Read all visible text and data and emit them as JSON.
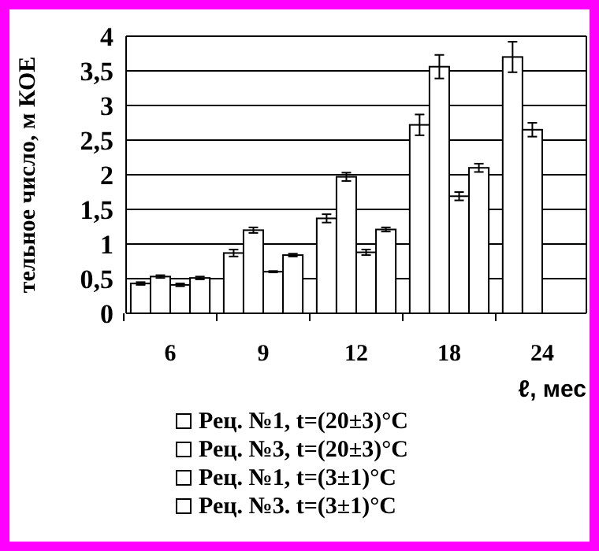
{
  "chart_data": {
    "type": "bar",
    "categories": [
      "6",
      "9",
      "12",
      "18",
      "24"
    ],
    "xlabel": "ℓ, мес",
    "ylabel": "тельное число, м КОЕ",
    "ylim": [
      0,
      4
    ],
    "yticks": [
      0,
      {
        "value": 0.5,
        "label": "0,5"
      },
      1,
      {
        "value": 1.5,
        "label": "1,5"
      },
      2,
      {
        "value": 2.5,
        "label": "2,5"
      },
      3,
      {
        "value": 3.5,
        "label": "3,5"
      },
      4
    ],
    "grid": "y",
    "legend": "bottom",
    "series": [
      {
        "name": "Рец. №1, t=(20±3)°C",
        "color": "#ffffff",
        "values": [
          0.43,
          0.87,
          1.37,
          2.72,
          3.7
        ],
        "errors": [
          0.02,
          0.05,
          0.06,
          0.15,
          0.22
        ]
      },
      {
        "name": "Рец. №3, t=(20±3)°C",
        "color": "#ffffff",
        "values": [
          0.53,
          1.2,
          1.97,
          3.56,
          2.65
        ],
        "errors": [
          0.02,
          0.04,
          0.06,
          0.17,
          0.1
        ]
      },
      {
        "name": "Рец. №1, t=(3±1)°C",
        "color": "#ffffff",
        "values": [
          0.41,
          0.6,
          0.88,
          1.69,
          null
        ],
        "errors": [
          0.02,
          0.01,
          0.04,
          0.06,
          null
        ]
      },
      {
        "name": "Рец. №3. t=(3±1)°C",
        "color": "#ffffff",
        "values": [
          0.51,
          0.84,
          1.21,
          2.1,
          null
        ],
        "errors": [
          0.02,
          0.02,
          0.03,
          0.06,
          null
        ]
      }
    ]
  }
}
